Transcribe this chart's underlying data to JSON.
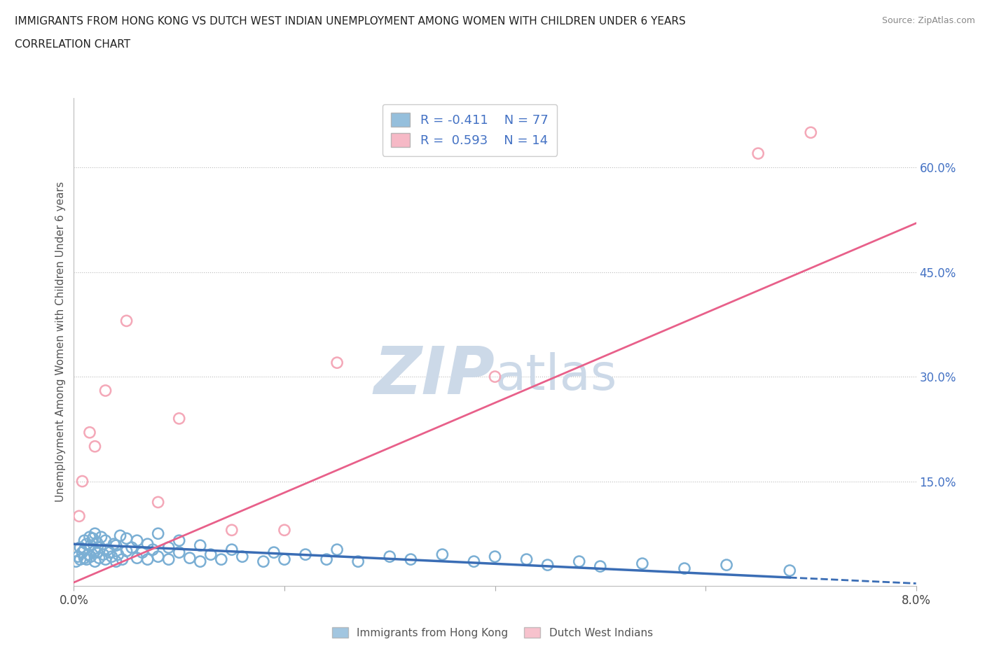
{
  "title_line1": "IMMIGRANTS FROM HONG KONG VS DUTCH WEST INDIAN UNEMPLOYMENT AMONG WOMEN WITH CHILDREN UNDER 6 YEARS",
  "title_line2": "CORRELATION CHART",
  "source_text": "Source: ZipAtlas.com",
  "ylabel": "Unemployment Among Women with Children Under 6 years",
  "xlim": [
    0.0,
    0.08
  ],
  "ylim": [
    0.0,
    0.7
  ],
  "yticks_right": [
    0.15,
    0.3,
    0.45,
    0.6
  ],
  "yticklabels_right": [
    "15.0%",
    "30.0%",
    "45.0%",
    "60.0%"
  ],
  "blue_color": "#7bafd4",
  "pink_color": "#f4a8b8",
  "blue_edge_color": "#5b8db8",
  "pink_edge_color": "#e07090",
  "blue_line_color": "#3a6db5",
  "pink_line_color": "#e8608a",
  "watermark_color": "#ccd9e8",
  "background_color": "#ffffff",
  "grid_color": "#bbbbbb",
  "blue_scatter_x": [
    0.0002,
    0.0004,
    0.0006,
    0.0006,
    0.0008,
    0.001,
    0.001,
    0.001,
    0.0012,
    0.0012,
    0.0014,
    0.0015,
    0.0016,
    0.0016,
    0.0018,
    0.002,
    0.002,
    0.002,
    0.0022,
    0.0022,
    0.0024,
    0.0025,
    0.0026,
    0.0028,
    0.003,
    0.003,
    0.0032,
    0.0034,
    0.0036,
    0.0038,
    0.004,
    0.004,
    0.0042,
    0.0044,
    0.0046,
    0.005,
    0.005,
    0.0055,
    0.006,
    0.006,
    0.0065,
    0.007,
    0.007,
    0.0075,
    0.008,
    0.008,
    0.009,
    0.009,
    0.01,
    0.01,
    0.011,
    0.012,
    0.012,
    0.013,
    0.014,
    0.015,
    0.016,
    0.018,
    0.019,
    0.02,
    0.022,
    0.024,
    0.025,
    0.027,
    0.03,
    0.032,
    0.035,
    0.038,
    0.04,
    0.043,
    0.045,
    0.048,
    0.05,
    0.054,
    0.058,
    0.062,
    0.068
  ],
  "blue_scatter_y": [
    0.035,
    0.042,
    0.038,
    0.055,
    0.048,
    0.04,
    0.052,
    0.065,
    0.038,
    0.06,
    0.045,
    0.07,
    0.058,
    0.042,
    0.068,
    0.035,
    0.05,
    0.075,
    0.048,
    0.062,
    0.04,
    0.055,
    0.07,
    0.045,
    0.038,
    0.065,
    0.052,
    0.048,
    0.042,
    0.06,
    0.035,
    0.058,
    0.045,
    0.072,
    0.038,
    0.05,
    0.068,
    0.055,
    0.04,
    0.065,
    0.048,
    0.038,
    0.06,
    0.052,
    0.042,
    0.075,
    0.038,
    0.055,
    0.048,
    0.065,
    0.04,
    0.035,
    0.058,
    0.045,
    0.038,
    0.052,
    0.042,
    0.035,
    0.048,
    0.038,
    0.045,
    0.038,
    0.052,
    0.035,
    0.042,
    0.038,
    0.045,
    0.035,
    0.042,
    0.038,
    0.03,
    0.035,
    0.028,
    0.032,
    0.025,
    0.03,
    0.022
  ],
  "pink_scatter_x": [
    0.0005,
    0.0008,
    0.0015,
    0.002,
    0.003,
    0.005,
    0.008,
    0.01,
    0.015,
    0.02,
    0.025,
    0.04,
    0.065,
    0.07
  ],
  "pink_scatter_y": [
    0.1,
    0.15,
    0.22,
    0.2,
    0.28,
    0.38,
    0.12,
    0.24,
    0.08,
    0.08,
    0.32,
    0.3,
    0.62,
    0.65
  ],
  "blue_trend_x0": 0.0,
  "blue_trend_x1": 0.068,
  "blue_trend_x_dash": 0.068,
  "blue_trend_x_end": 0.08,
  "blue_trend_y0": 0.06,
  "blue_trend_y1": 0.012,
  "pink_trend_x0": 0.0,
  "pink_trend_x1": 0.08,
  "pink_trend_y0": 0.005,
  "pink_trend_y1": 0.52
}
